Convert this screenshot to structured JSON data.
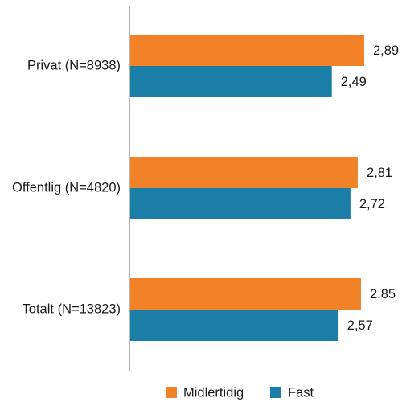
{
  "chart_data": {
    "type": "bar",
    "orientation": "horizontal",
    "categories": [
      "Privat (N=8938)",
      "Offentlig (N=4820)",
      "Totalt (N=13823)"
    ],
    "series": [
      {
        "name": "Midlertidig",
        "color": "#f28227",
        "values": [
          2.89,
          2.81,
          2.85
        ],
        "labels": [
          "2,89",
          "2,81",
          "2,85"
        ]
      },
      {
        "name": "Fast",
        "color": "#1a7ea7",
        "values": [
          2.49,
          2.72,
          2.57
        ],
        "labels": [
          "2,49",
          "2,72",
          "2,57"
        ]
      }
    ],
    "xlim": [
      0,
      3.3
    ],
    "grid": false,
    "legend_position": "bottom"
  }
}
